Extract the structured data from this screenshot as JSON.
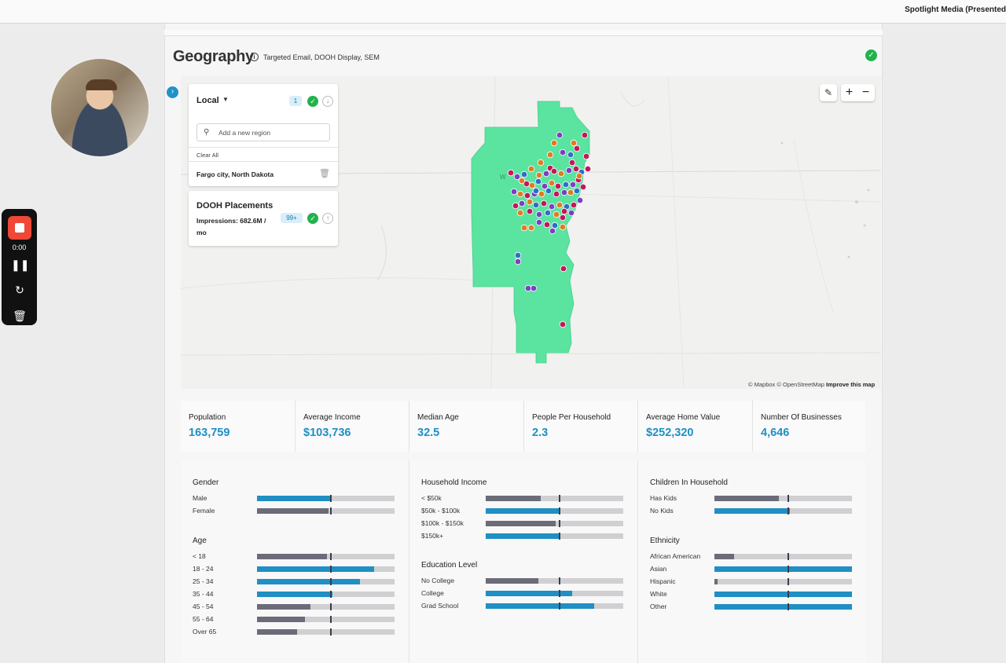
{
  "topbar": {
    "brand": "Spotlight Media (Presented"
  },
  "recorder": {
    "time": "0:00"
  },
  "section": {
    "title": "Geography",
    "channels": "Targeted Email, DOOH Display, SEM"
  },
  "local_card": {
    "title": "Local",
    "count": "1",
    "search_placeholder": "Add a new region",
    "clear_all": "Clear All",
    "region": "Fargo city, North Dakota"
  },
  "dooh_card": {
    "title": "DOOH Placements",
    "impressions": "Impressions: 682.6M / mo",
    "count": "99+"
  },
  "map": {
    "attribution_mapbox": "© Mapbox",
    "attribution_osm": "© OpenStreetMap",
    "improve": "Improve this map",
    "region_color": "#5be3a0",
    "marker_colors": [
      "#c2185b",
      "#7b3fc4",
      "#e07b22",
      "#2d6fc4"
    ]
  },
  "stats": [
    {
      "label": "Population",
      "value": "163,759"
    },
    {
      "label": "Average Income",
      "value": "$103,736"
    },
    {
      "label": "Median Age",
      "value": "32.5"
    },
    {
      "label": "People Per Household",
      "value": "2.3"
    },
    {
      "label": "Average Home Value",
      "value": "$252,320"
    },
    {
      "label": "Number Of Businesses",
      "value": "4,646"
    }
  ],
  "demographics": [
    {
      "title": "Gender",
      "rows": [
        {
          "label": "Male",
          "value": 0.53,
          "color": "blue"
        },
        {
          "label": "Female",
          "value": 0.52,
          "color": "gray"
        }
      ]
    },
    {
      "title": "Age",
      "rows": [
        {
          "label": "< 18",
          "value": 0.51,
          "color": "gray"
        },
        {
          "label": "18 - 24",
          "value": 0.85,
          "color": "blue"
        },
        {
          "label": "25 - 34",
          "value": 0.75,
          "color": "blue"
        },
        {
          "label": "35 - 44",
          "value": 0.55,
          "color": "blue"
        },
        {
          "label": "45 - 54",
          "value": 0.39,
          "color": "gray"
        },
        {
          "label": "55 - 64",
          "value": 0.35,
          "color": "gray"
        },
        {
          "label": "Over 65",
          "value": 0.29,
          "color": "gray"
        }
      ]
    },
    {
      "title": "Household Income",
      "rows": [
        {
          "label": "< $50k",
          "value": 0.4,
          "color": "gray"
        },
        {
          "label": "$50k - $100k",
          "value": 0.54,
          "color": "blue"
        },
        {
          "label": "$100k - $150k",
          "value": 0.51,
          "color": "gray"
        },
        {
          "label": "$150k+",
          "value": 0.54,
          "color": "blue"
        }
      ]
    },
    {
      "title": "Education Level",
      "rows": [
        {
          "label": "No College",
          "value": 0.38,
          "color": "gray"
        },
        {
          "label": "College",
          "value": 0.63,
          "color": "blue"
        },
        {
          "label": "Grad School",
          "value": 0.79,
          "color": "blue"
        }
      ]
    },
    {
      "title": "Children In Household",
      "rows": [
        {
          "label": "Has Kids",
          "value": 0.47,
          "color": "gray"
        },
        {
          "label": "No Kids",
          "value": 0.55,
          "color": "blue"
        }
      ]
    },
    {
      "title": "Ethnicity",
      "rows": [
        {
          "label": "African American",
          "value": 0.14,
          "color": "gray"
        },
        {
          "label": "Asian",
          "value": 1.0,
          "color": "blue"
        },
        {
          "label": "Hispanic",
          "value": 0.02,
          "color": "gray"
        },
        {
          "label": "White",
          "value": 1.0,
          "color": "blue"
        },
        {
          "label": "Other",
          "value": 1.0,
          "color": "blue"
        }
      ]
    }
  ]
}
